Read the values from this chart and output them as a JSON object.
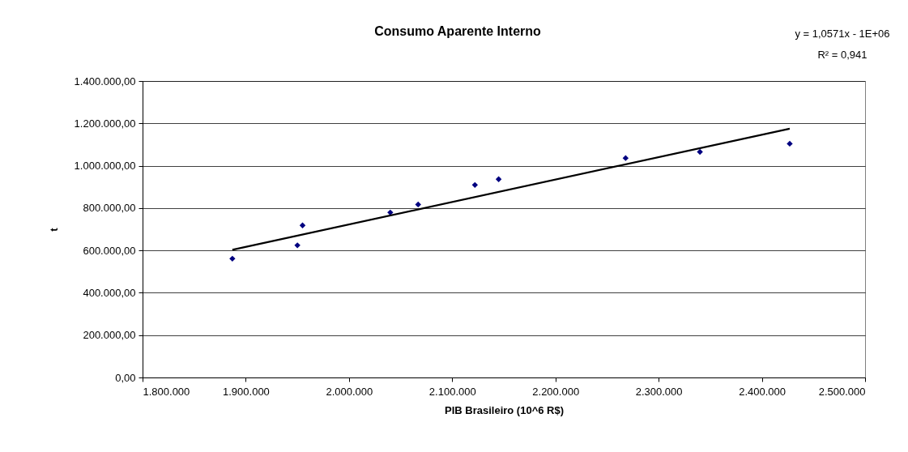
{
  "chart_data": {
    "type": "scatter",
    "title": "Consumo Aparente Interno",
    "xlabel": "PIB Brasileiro (10^6 R$)",
    "ylabel": "t",
    "annotations": [
      "y = 1,0571x - 1E+06",
      "R² = 0,941"
    ],
    "series": [
      {
        "color": "#000080",
        "marker": "diamond",
        "x": [
          1887000,
          1950000,
          1955000,
          2040000,
          2067000,
          2122000,
          2145000,
          2268000,
          2340000,
          2427000
        ],
        "values": [
          561000,
          624000,
          718000,
          779000,
          817000,
          909000,
          936000,
          1036000,
          1065000,
          1104000
        ]
      },
      {
        "type": "line",
        "color": "#000000",
        "x": [
          1887000,
          2427000
        ],
        "values": [
          603000,
          1175000
        ]
      }
    ],
    "grid": "y",
    "xlim": [
      1800000,
      2500000
    ],
    "xticks": [
      {
        "value": 1800000,
        "label": "1.800.000"
      },
      {
        "value": 1900000,
        "label": "1.900.000"
      },
      {
        "value": 2000000,
        "label": "2.000.000"
      },
      {
        "value": 2100000,
        "label": "2.100.000"
      },
      {
        "value": 2200000,
        "label": "2.200.000"
      },
      {
        "value": 2300000,
        "label": "2.300.000"
      },
      {
        "value": 2400000,
        "label": "2.400.000"
      },
      {
        "value": 2500000,
        "label": "2.500.000"
      }
    ],
    "ylim": [
      0,
      1400000
    ],
    "yticks": [
      {
        "value": 0,
        "label": "0,00"
      },
      {
        "value": 200000,
        "label": "200.000,00"
      },
      {
        "value": 400000,
        "label": "400.000,00"
      },
      {
        "value": 600000,
        "label": "600.000,00"
      },
      {
        "value": 800000,
        "label": "800.000,00"
      },
      {
        "value": 1000000,
        "label": "1.000.000,00"
      },
      {
        "value": 1200000,
        "label": "1.200.000,00"
      },
      {
        "value": 1400000,
        "label": "1.400.000,00"
      }
    ]
  }
}
